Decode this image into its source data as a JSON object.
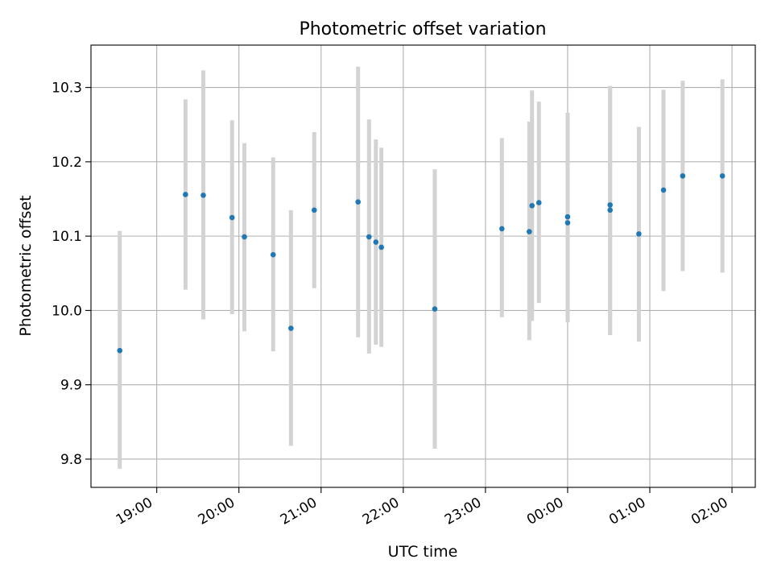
{
  "chart_data": {
    "type": "scatter",
    "title": "Photometric offset variation",
    "xlabel": "UTC time",
    "ylabel": "Photometric offset",
    "x_axis": {
      "type": "time",
      "range": [
        "18:12",
        "02:17"
      ],
      "ticks": [
        "19:00",
        "20:00",
        "21:00",
        "22:00",
        "23:00",
        "00:00",
        "01:00",
        "02:00"
      ]
    },
    "y_axis": {
      "range": [
        9.762,
        10.357
      ],
      "ticks": [
        "9.8",
        "9.9",
        "10.0",
        "10.1",
        "10.2",
        "10.3"
      ]
    },
    "grid": true,
    "colors": {
      "point": "#1f77b4",
      "errorbar": "#d3d3d3",
      "grid": "#b0b0b0"
    },
    "points": [
      {
        "x": "18:33",
        "y": 9.946,
        "ylo": 9.787,
        "yhi": 10.107
      },
      {
        "x": "19:21",
        "y": 10.156,
        "ylo": 10.028,
        "yhi": 10.284
      },
      {
        "x": "19:34",
        "y": 10.155,
        "ylo": 9.988,
        "yhi": 10.323
      },
      {
        "x": "19:55",
        "y": 10.125,
        "ylo": 9.995,
        "yhi": 10.256
      },
      {
        "x": "20:04",
        "y": 10.099,
        "ylo": 9.972,
        "yhi": 10.225
      },
      {
        "x": "20:25",
        "y": 10.075,
        "ylo": 9.945,
        "yhi": 10.206
      },
      {
        "x": "20:38",
        "y": 9.976,
        "ylo": 9.818,
        "yhi": 10.135
      },
      {
        "x": "20:55",
        "y": 10.135,
        "ylo": 10.03,
        "yhi": 10.24
      },
      {
        "x": "21:27",
        "y": 10.146,
        "ylo": 9.964,
        "yhi": 10.328
      },
      {
        "x": "21:35",
        "y": 10.099,
        "ylo": 9.942,
        "yhi": 10.257
      },
      {
        "x": "21:40",
        "y": 10.092,
        "ylo": 9.954,
        "yhi": 10.23
      },
      {
        "x": "21:44",
        "y": 10.085,
        "ylo": 9.951,
        "yhi": 10.219
      },
      {
        "x": "22:23",
        "y": 10.002,
        "ylo": 9.814,
        "yhi": 10.19
      },
      {
        "x": "23:12",
        "y": 10.11,
        "ylo": 9.991,
        "yhi": 10.232
      },
      {
        "x": "23:32",
        "y": 10.106,
        "ylo": 9.96,
        "yhi": 10.254
      },
      {
        "x": "23:34",
        "y": 10.141,
        "ylo": 9.986,
        "yhi": 10.296
      },
      {
        "x": "23:39",
        "y": 10.145,
        "ylo": 10.01,
        "yhi": 10.281
      },
      {
        "x": "00:00",
        "y": 10.126,
        "ylo": 9.984,
        "yhi": 10.266
      },
      {
        "x": "00:00",
        "y": 10.118,
        "ylo": 9.984,
        "yhi": 10.266
      },
      {
        "x": "00:31",
        "y": 10.142,
        "ylo": 9.967,
        "yhi": 10.302
      },
      {
        "x": "00:31",
        "y": 10.135,
        "ylo": 9.967,
        "yhi": 10.302
      },
      {
        "x": "00:52",
        "y": 10.103,
        "ylo": 9.958,
        "yhi": 10.247
      },
      {
        "x": "01:10",
        "y": 10.162,
        "ylo": 10.026,
        "yhi": 10.297
      },
      {
        "x": "01:24",
        "y": 10.181,
        "ylo": 10.053,
        "yhi": 10.309
      },
      {
        "x": "01:53",
        "y": 10.181,
        "ylo": 10.051,
        "yhi": 10.311
      }
    ]
  }
}
